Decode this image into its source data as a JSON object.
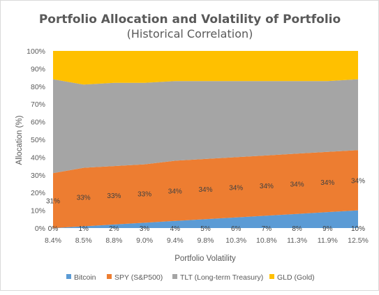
{
  "chart_data": {
    "type": "area",
    "stacked_percent": true,
    "title": "Portfolio Allocation and Volatility of Portfolio",
    "subtitle": "(Historical Correlation)",
    "xlabel": "Portfolio Volatility",
    "ylabel": "Allocation (%)",
    "ylim": [
      0,
      100
    ],
    "y_ticks": [
      "0%",
      "10%",
      "20%",
      "30%",
      "40%",
      "50%",
      "60%",
      "70%",
      "80%",
      "90%",
      "100%"
    ],
    "grid": false,
    "legend_position": "bottom",
    "categories": [
      "8.4%",
      "8.5%",
      "8.8%",
      "9.0%",
      "9.4%",
      "9.8%",
      "10.3%",
      "10.8%",
      "11.3%",
      "11.9%",
      "12.5%"
    ],
    "series": [
      {
        "name": "Bitcoin",
        "color": "#5B9BD5",
        "values": [
          0,
          1,
          2,
          3,
          4,
          5,
          6,
          7,
          8,
          9,
          10
        ],
        "labels": [
          "0%",
          "1%",
          "2%",
          "3%",
          "4%",
          "5%",
          "6%",
          "7%",
          "8%",
          "9%",
          "10%"
        ]
      },
      {
        "name": "SPY (S&P500)",
        "color": "#ED7D31",
        "values": [
          31,
          33,
          33,
          33,
          34,
          34,
          34,
          34,
          34,
          34,
          34
        ],
        "labels": [
          "31%",
          "33%",
          "33%",
          "33%",
          "34%",
          "34%",
          "34%",
          "34%",
          "34%",
          "34%",
          "34%"
        ]
      },
      {
        "name": "TLT (Long-term Treasury)",
        "color": "#A5A5A5",
        "values": [
          53,
          47,
          47,
          46,
          45,
          44,
          43,
          42,
          41,
          40,
          40
        ]
      },
      {
        "name": "GLD (Gold)",
        "color": "#FFC000",
        "values": [
          16,
          19,
          18,
          18,
          17,
          17,
          17,
          17,
          17,
          17,
          16
        ]
      }
    ]
  }
}
